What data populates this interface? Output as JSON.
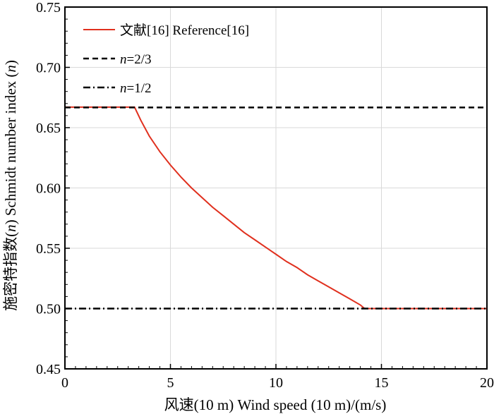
{
  "chart_data": {
    "type": "line",
    "xlabel": "风速(10 m) Wind speed (10 m)/(m/s)",
    "ylabel_pre": "施密特指数(",
    "ylabel_n1": "n",
    "ylabel_mid": ") Schmidt number index (",
    "ylabel_n2": "n",
    "ylabel_post": ")",
    "xlim": [
      0,
      20
    ],
    "ylim": [
      0.45,
      0.75
    ],
    "x_ticks": [
      "0",
      "5",
      "10",
      "15",
      "20"
    ],
    "y_ticks": [
      "0.45",
      "0.50",
      "0.55",
      "0.60",
      "0.65",
      "0.70",
      "0.75"
    ],
    "grid": true,
    "legend_position": "top-left",
    "series": [
      {
        "name": "文献[16] Reference[16]",
        "color": "#e0301e",
        "style": "solid",
        "x": [
          0,
          3.3,
          3.6,
          4.0,
          4.5,
          5.0,
          5.5,
          6.0,
          6.5,
          7.0,
          7.5,
          8.0,
          8.5,
          9.0,
          9.5,
          10.0,
          10.5,
          11.0,
          11.5,
          12.0,
          12.5,
          13.0,
          13.5,
          14.0,
          14.2,
          20
        ],
        "y": [
          0.667,
          0.667,
          0.656,
          0.643,
          0.63,
          0.619,
          0.609,
          0.6,
          0.592,
          0.584,
          0.577,
          0.57,
          0.563,
          0.557,
          0.551,
          0.545,
          0.539,
          0.534,
          0.528,
          0.523,
          0.518,
          0.513,
          0.508,
          0.503,
          0.5,
          0.5
        ]
      },
      {
        "name_italic": "n",
        "name_rest": "=2/3",
        "color": "#000000",
        "style": "dashed",
        "x": [
          0,
          20
        ],
        "y": [
          0.6667,
          0.6667
        ]
      },
      {
        "name_italic": "n",
        "name_rest": "=1/2",
        "color": "#000000",
        "style": "dashdot",
        "x": [
          0,
          20
        ],
        "y": [
          0.5,
          0.5
        ]
      }
    ]
  }
}
